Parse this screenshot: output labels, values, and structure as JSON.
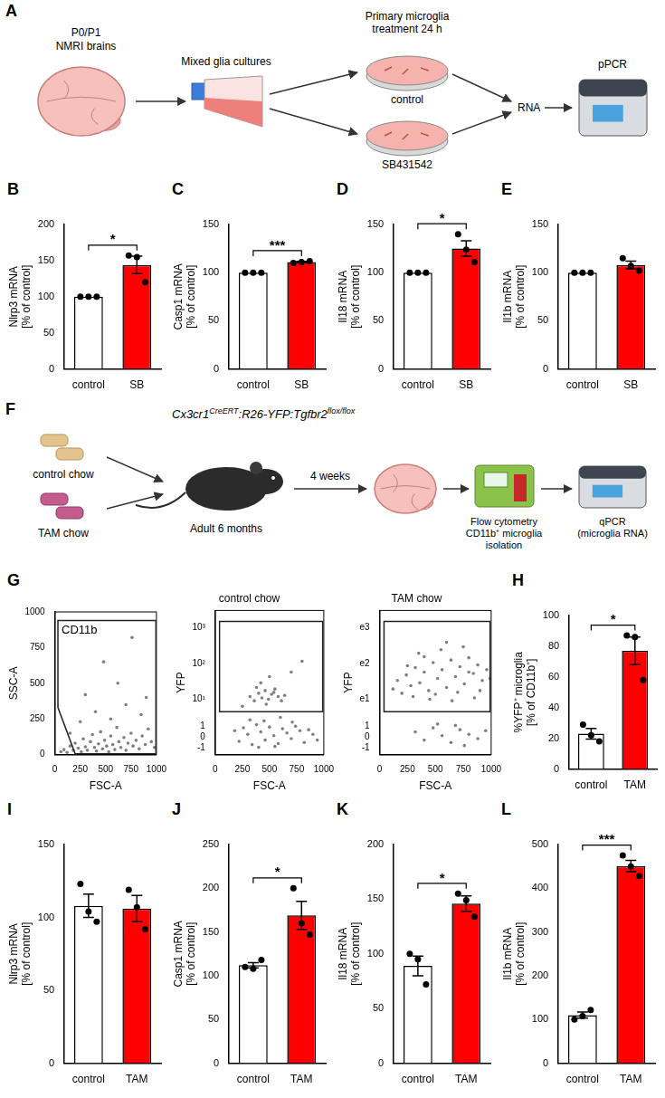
{
  "diagrams": [
    {
      "panel": "A",
      "source": [
        "P0/P1",
        "NMRI brains"
      ],
      "culture": "Mixed glia cultures",
      "treatment": [
        "Primary microglia",
        "treatment 24 h"
      ],
      "conditions": [
        "control",
        "SB431542"
      ],
      "product": "RNA",
      "instrument": "pPCR"
    },
    {
      "panel": "F",
      "genotype": [
        {
          "text": "Cx3cr1"
        },
        {
          "text": "CreERT",
          "sup": true
        },
        {
          "text": ":R26-YFP:Tgfbr2"
        },
        {
          "text": "flox/flox",
          "sup": true
        }
      ],
      "diets": [
        "control chow",
        "TAM chow"
      ],
      "subject": "Adult 6 months",
      "duration": "4 weeks",
      "sorting": [
        "Flow cytometry",
        "CD11b⁺ microglia",
        "isolation"
      ],
      "analysis": [
        "qPCR",
        "(microglia RNA)"
      ]
    }
  ],
  "chart_data": [
    {
      "panel": "B",
      "type": "bar",
      "categories": [
        "control",
        "SB"
      ],
      "values": [
        100,
        144
      ],
      "errors": [
        0,
        12
      ],
      "points": [
        [
          100,
          100,
          100
        ],
        [
          157,
          155,
          120
        ]
      ],
      "colors": [
        "#ffffff",
        "#ff0000"
      ],
      "ylabel": [
        "Nlrp3 mRNA",
        "[% of control]"
      ],
      "ylim": [
        0,
        200
      ],
      "yticks": [
        0,
        50,
        100,
        150,
        200
      ],
      "significance": "*",
      "grid": false
    },
    {
      "panel": "C",
      "type": "bar",
      "categories": [
        "control",
        "SB"
      ],
      "values": [
        100,
        111
      ],
      "errors": [
        0,
        0.7
      ],
      "points": [
        [
          100,
          100,
          100
        ],
        [
          110,
          111,
          112
        ]
      ],
      "colors": [
        "#ffffff",
        "#ff0000"
      ],
      "ylabel": [
        "Casp1 mRNA",
        "[% of control]"
      ],
      "ylim": [
        0,
        150
      ],
      "yticks": [
        0,
        50,
        100,
        150
      ],
      "significance": "***",
      "grid": false
    },
    {
      "panel": "D",
      "type": "bar",
      "categories": [
        "control",
        "SB"
      ],
      "values": [
        100,
        125
      ],
      "errors": [
        0,
        8
      ],
      "points": [
        [
          100,
          100,
          100
        ],
        [
          140,
          124,
          111
        ]
      ],
      "colors": [
        "#ffffff",
        "#ff0000"
      ],
      "ylabel": [
        "Il18 mRNA",
        "[% of control]"
      ],
      "ylim": [
        0,
        150
      ],
      "yticks": [
        0,
        50,
        100,
        150
      ],
      "significance": "*",
      "grid": false
    },
    {
      "panel": "E",
      "type": "bar",
      "categories": [
        "control",
        "SB"
      ],
      "values": [
        100,
        108
      ],
      "errors": [
        0,
        4
      ],
      "points": [
        [
          100,
          100,
          100
        ],
        [
          115,
          107,
          102
        ]
      ],
      "colors": [
        "#ffffff",
        "#ff0000"
      ],
      "ylabel": [
        "Il1b mRNA",
        "[% of control]"
      ],
      "ylim": [
        0,
        150
      ],
      "yticks": [
        0,
        50,
        100,
        150
      ],
      "grid": false
    },
    {
      "panel": "G",
      "type": "scatter",
      "xlabel": "FSC-A",
      "ylabel": "SSC-A",
      "xlim": [
        0,
        1000
      ],
      "xticks": [
        0,
        250,
        500,
        750,
        1000
      ],
      "ylim": [
        0,
        1000
      ],
      "yticks": [
        0,
        250,
        500,
        750,
        1000
      ],
      "color": "#808080",
      "grid": false,
      "points": [
        [
          60,
          20
        ],
        [
          90,
          35
        ],
        [
          120,
          15
        ],
        [
          150,
          60
        ],
        [
          180,
          30
        ],
        [
          200,
          80
        ],
        [
          230,
          45
        ],
        [
          260,
          20
        ],
        [
          280,
          110
        ],
        [
          300,
          55
        ],
        [
          320,
          30
        ],
        [
          350,
          90
        ],
        [
          370,
          140
        ],
        [
          390,
          50
        ],
        [
          410,
          25
        ],
        [
          430,
          75
        ],
        [
          450,
          160
        ],
        [
          470,
          40
        ],
        [
          490,
          100
        ],
        [
          510,
          60
        ],
        [
          530,
          20
        ],
        [
          550,
          130
        ],
        [
          570,
          70
        ],
        [
          590,
          35
        ],
        [
          610,
          190
        ],
        [
          630,
          90
        ],
        [
          650,
          50
        ],
        [
          680,
          120
        ],
        [
          700,
          30
        ],
        [
          720,
          80
        ],
        [
          750,
          150
        ],
        [
          770,
          60
        ],
        [
          800,
          100
        ],
        [
          830,
          40
        ],
        [
          860,
          130
        ],
        [
          890,
          70
        ],
        [
          920,
          180
        ],
        [
          950,
          90
        ],
        [
          980,
          50
        ],
        [
          400,
          300
        ],
        [
          550,
          250
        ],
        [
          700,
          350
        ],
        [
          300,
          420
        ],
        [
          620,
          500
        ],
        [
          850,
          280
        ],
        [
          480,
          650
        ],
        [
          760,
          820
        ],
        [
          250,
          230
        ],
        [
          900,
          400
        ],
        [
          150,
          150
        ]
      ],
      "gate": {
        "label": "CD11b",
        "points": [
          [
            30,
            940
          ],
          [
            995,
            940
          ],
          [
            995,
            5
          ],
          [
            200,
            5
          ],
          [
            30,
            330
          ]
        ]
      }
    },
    {
      "type": "scatter",
      "title": "control chow",
      "xlabel": "FSC-A",
      "ylabel": "YFP",
      "log": "y",
      "xlim": [
        0,
        1000
      ],
      "xticks": [
        0,
        250,
        500,
        750,
        1000
      ],
      "ylim": [
        -2,
        3000
      ],
      "yticks": [
        -1,
        0,
        1,
        {
          "value": 10,
          "label": "10¹"
        },
        {
          "value": 100,
          "label": "10²"
        },
        {
          "value": 1000,
          "label": "10³"
        }
      ],
      "color": "#808080",
      "grid": false,
      "points": [
        [
          180,
          0.5
        ],
        [
          220,
          -0.3
        ],
        [
          260,
          0.8
        ],
        [
          300,
          0.2
        ],
        [
          340,
          -0.6
        ],
        [
          380,
          1.2
        ],
        [
          420,
          0.4
        ],
        [
          460,
          -0.2
        ],
        [
          500,
          0.9
        ],
        [
          540,
          0.1
        ],
        [
          580,
          -0.5
        ],
        [
          620,
          0.7
        ],
        [
          660,
          0.3
        ],
        [
          700,
          -0.1
        ],
        [
          740,
          1
        ],
        [
          780,
          0.5
        ],
        [
          820,
          -0.4
        ],
        [
          860,
          0.6
        ],
        [
          900,
          0.2
        ],
        [
          940,
          -0.2
        ],
        [
          320,
          2
        ],
        [
          450,
          1.8
        ],
        [
          600,
          2.5
        ],
        [
          710,
          1.6
        ],
        [
          400,
          -0.9
        ],
        [
          550,
          -0.8
        ],
        [
          320,
          12
        ],
        [
          360,
          9
        ],
        [
          400,
          15
        ],
        [
          430,
          11
        ],
        [
          460,
          18
        ],
        [
          490,
          10
        ],
        [
          520,
          14
        ],
        [
          550,
          20
        ],
        [
          580,
          12
        ],
        [
          610,
          9
        ],
        [
          380,
          22
        ],
        [
          470,
          7
        ],
        [
          540,
          16
        ],
        [
          640,
          13
        ],
        [
          420,
          30
        ],
        [
          500,
          45
        ],
        [
          700,
          60
        ],
        [
          250,
          6
        ],
        [
          800,
          120
        ]
      ],
      "gate": {
        "points": [
          [
            40,
            4
          ],
          [
            990,
            4
          ],
          [
            990,
            1500
          ],
          [
            40,
            1500
          ]
        ]
      }
    },
    {
      "type": "scatter",
      "title": "TAM chow",
      "xlabel": "FSC-A",
      "ylabel": "YFP",
      "log": "y",
      "xlim": [
        0,
        1000
      ],
      "xticks": [
        0,
        250,
        500,
        750,
        1000
      ],
      "ylim": [
        -2,
        3000
      ],
      "yticks": [
        -1,
        0,
        1,
        {
          "value": 10,
          "label": "e1"
        },
        {
          "value": 100,
          "label": "e2"
        },
        {
          "value": 1000,
          "label": "e3"
        }
      ],
      "color": "#808080",
      "grid": false,
      "points": [
        [
          120,
          20
        ],
        [
          160,
          35
        ],
        [
          200,
          15
        ],
        [
          240,
          50
        ],
        [
          280,
          25
        ],
        [
          320,
          80
        ],
        [
          360,
          30
        ],
        [
          400,
          60
        ],
        [
          440,
          18
        ],
        [
          480,
          110
        ],
        [
          520,
          40
        ],
        [
          560,
          70
        ],
        [
          600,
          22
        ],
        [
          640,
          130
        ],
        [
          680,
          45
        ],
        [
          720,
          85
        ],
        [
          760,
          28
        ],
        [
          800,
          150
        ],
        [
          840,
          55
        ],
        [
          880,
          95
        ],
        [
          920,
          35
        ],
        [
          960,
          70
        ],
        [
          300,
          12
        ],
        [
          500,
          14
        ],
        [
          700,
          16
        ],
        [
          900,
          18
        ],
        [
          350,
          200
        ],
        [
          550,
          250
        ],
        [
          750,
          300
        ],
        [
          450,
          10
        ],
        [
          650,
          9
        ],
        [
          850,
          11
        ],
        [
          600,
          400
        ],
        [
          400,
          160
        ],
        [
          800,
          60
        ],
        [
          250,
          90
        ],
        [
          990,
          40
        ],
        [
          320,
          0.4
        ],
        [
          400,
          -0.2
        ],
        [
          480,
          0.8
        ],
        [
          560,
          0.1
        ],
        [
          640,
          -0.4
        ],
        [
          720,
          0.6
        ],
        [
          800,
          0.2
        ],
        [
          880,
          -0.1
        ],
        [
          950,
          0.5
        ],
        [
          520,
          1.3
        ],
        [
          680,
          1.1
        ],
        [
          760,
          -0.7
        ]
      ],
      "gate": {
        "points": [
          [
            40,
            4
          ],
          [
            990,
            4
          ],
          [
            990,
            1500
          ],
          [
            40,
            1500
          ]
        ]
      }
    },
    {
      "panel": "H",
      "type": "bar",
      "categories": [
        "control",
        "TAM"
      ],
      "values": [
        23,
        77
      ],
      "errors": [
        3.5,
        9
      ],
      "points": [
        [
          29,
          22,
          18
        ],
        [
          87,
          86,
          58
        ]
      ],
      "colors": [
        "#ffffff",
        "#ff0000"
      ],
      "ylabel": [
        "%YFP⁺ microglia",
        "[% of CD11b⁺]"
      ],
      "ylim": [
        0,
        100
      ],
      "yticks": [
        0,
        20,
        40,
        60,
        80,
        100
      ],
      "significance": "*",
      "grid": false
    },
    {
      "panel": "I",
      "type": "bar",
      "categories": [
        "control",
        "TAM"
      ],
      "values": [
        108,
        106
      ],
      "errors": [
        8,
        9
      ],
      "points": [
        [
          123,
          104,
          97
        ],
        [
          119,
          107,
          92
        ]
      ],
      "colors": [
        "#ffffff",
        "#ff0000"
      ],
      "ylabel": [
        "Nlrp3 mRNA",
        "[% of control]"
      ],
      "ylim": [
        0,
        150
      ],
      "yticks": [
        0,
        50,
        100,
        150
      ],
      "grid": false
    },
    {
      "panel": "J",
      "type": "bar",
      "categories": [
        "control",
        "TAM"
      ],
      "values": [
        112,
        169
      ],
      "errors": [
        3,
        16
      ],
      "points": [
        [
          110,
          108,
          118
        ],
        [
          200,
          160,
          147
        ]
      ],
      "colors": [
        "#ffffff",
        "#ff0000"
      ],
      "ylabel": [
        "Casp1 mRNA",
        "[% of control]"
      ],
      "ylim": [
        0,
        250
      ],
      "yticks": [
        0,
        50,
        100,
        150,
        200,
        250
      ],
      "significance": "*",
      "grid": false
    },
    {
      "panel": "K",
      "type": "bar",
      "categories": [
        "control",
        "TAM"
      ],
      "values": [
        89,
        146
      ],
      "errors": [
        9,
        7
      ],
      "points": [
        [
          100,
          95,
          72
        ],
        [
          155,
          149,
          134
        ]
      ],
      "colors": [
        "#ffffff",
        "#ff0000"
      ],
      "ylabel": [
        "Il18 mRNA",
        "[% of control]"
      ],
      "ylim": [
        0,
        200
      ],
      "yticks": [
        0,
        50,
        100,
        150,
        200
      ],
      "significance": "*",
      "grid": false
    },
    {
      "panel": "L",
      "type": "bar",
      "categories": [
        "control",
        "TAM"
      ],
      "values": [
        110,
        451
      ],
      "errors": [
        7,
        13
      ],
      "points": [
        [
          100,
          108,
          122
        ],
        [
          475,
          450,
          428
        ]
      ],
      "colors": [
        "#ffffff",
        "#ff0000"
      ],
      "ylabel": [
        "Il1b mRNA",
        "[% of control]"
      ],
      "ylim": [
        0,
        500
      ],
      "yticks": [
        0,
        100,
        200,
        300,
        400,
        500
      ],
      "significance": "***",
      "grid": false
    }
  ]
}
